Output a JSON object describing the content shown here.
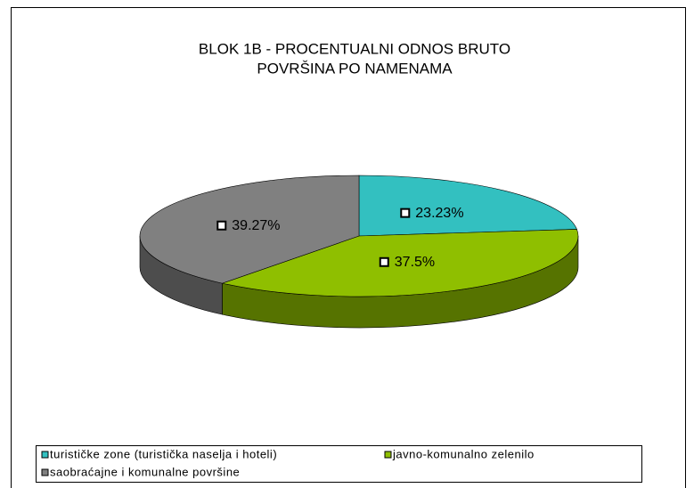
{
  "chart_data": {
    "type": "pie3d",
    "title": [
      "BLOK 1B - PROCENTUALNI ODNOS BRUTO",
      "POVRŠINA PO NAMENAMA"
    ],
    "categories": [
      "turističke zone (turistička naselja i hoteli)",
      "javno-komunalno zelenilo",
      "saobraćajne i komunalne površine"
    ],
    "values": [
      23.23,
      37.5,
      39.27
    ],
    "value_labels": [
      "23.23%",
      "37.5%",
      "39.27%"
    ],
    "colors": [
      "#33c0c0",
      "#8fbf00",
      "#808080"
    ],
    "legend": "bottom"
  }
}
